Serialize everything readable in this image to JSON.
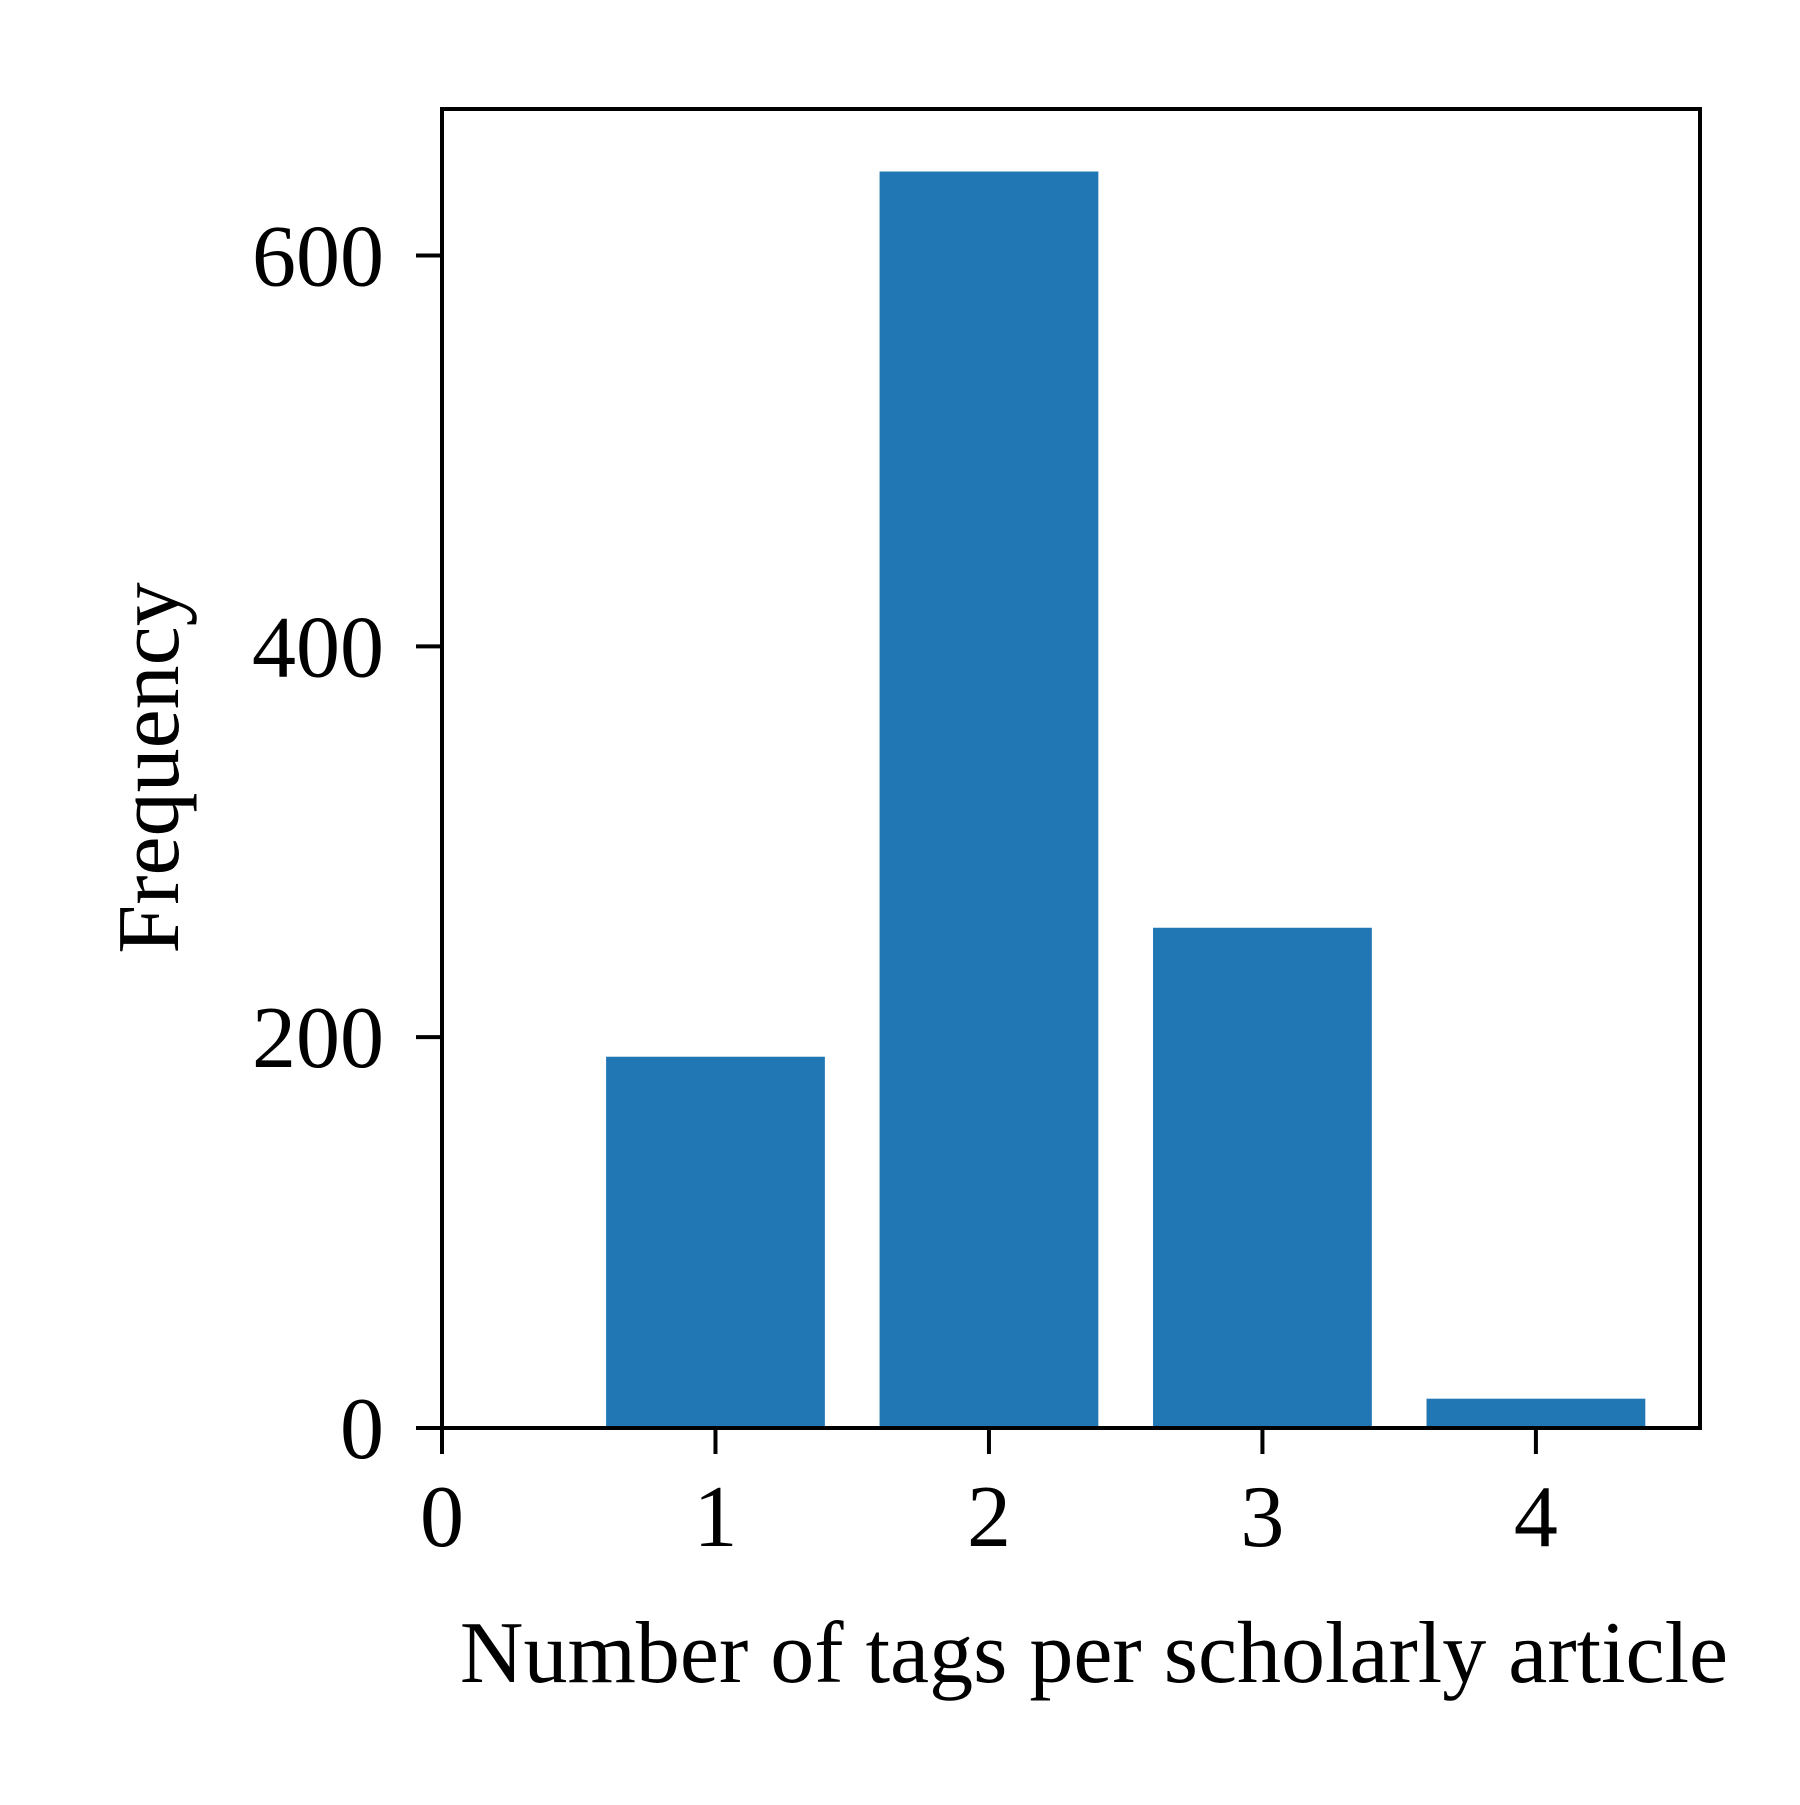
{
  "chart_data": {
    "type": "bar",
    "title": "",
    "xlabel": "Number of tags per scholarly article",
    "ylabel": "Frequency",
    "categories": [
      1,
      2,
      3,
      4
    ],
    "values": [
      190,
      643,
      256,
      15
    ],
    "xlim": [
      0,
      4.6
    ],
    "ylim": [
      0,
      675
    ],
    "xticks": [
      0,
      1,
      2,
      3,
      4
    ],
    "yticks": [
      0,
      200,
      400,
      600
    ],
    "bar_color": "#2077b4",
    "grid": false,
    "legend": "none"
  }
}
